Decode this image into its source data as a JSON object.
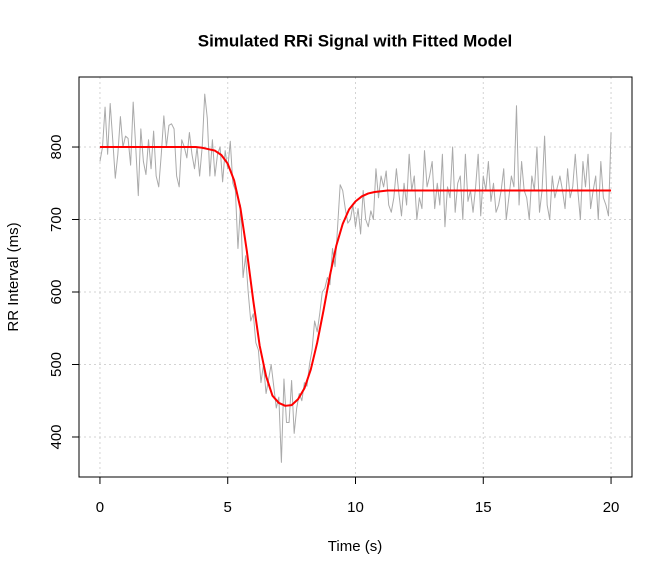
{
  "chart_data": {
    "type": "line",
    "title": "Simulated RRi Signal with Fitted Model",
    "x_label": "Time (s)",
    "y_label": "RR Interval (ms)",
    "xlim": [
      -0.82,
      20.82
    ],
    "ylim": [
      344.8,
      896.6
    ],
    "xticks": [
      0,
      5,
      10,
      15,
      20
    ],
    "yticks": [
      400,
      500,
      600,
      700,
      800
    ],
    "grid": true,
    "series": [
      {
        "color": "#aaaaaa",
        "width": 1,
        "x": [
          0,
          0.1,
          0.2,
          0.3,
          0.4,
          0.5,
          0.6,
          0.7,
          0.8,
          0.9,
          1,
          1.1,
          1.2,
          1.3,
          1.4,
          1.5,
          1.6,
          1.7,
          1.8,
          1.9,
          2,
          2.1,
          2.2,
          2.3,
          2.4,
          2.5,
          2.6,
          2.7,
          2.8,
          2.9,
          3,
          3.1,
          3.2,
          3.3,
          3.4,
          3.5,
          3.6,
          3.7,
          3.8,
          3.9,
          4,
          4.1,
          4.2,
          4.3,
          4.4,
          4.5,
          4.6,
          4.7,
          4.8,
          4.9,
          5,
          5.1,
          5.2,
          5.3,
          5.4,
          5.5,
          5.6,
          5.7,
          5.8,
          5.9,
          6,
          6.1,
          6.2,
          6.3,
          6.4,
          6.5,
          6.6,
          6.7,
          6.8,
          6.9,
          7,
          7.1,
          7.2,
          7.3,
          7.4,
          7.5,
          7.6,
          7.7,
          7.8,
          7.9,
          8,
          8.1,
          8.2,
          8.3,
          8.4,
          8.5,
          8.6,
          8.7,
          8.8,
          8.9,
          9,
          9.1,
          9.2,
          9.3,
          9.4,
          9.5,
          9.6,
          9.7,
          9.8,
          9.9,
          10,
          10.1,
          10.2,
          10.3,
          10.4,
          10.5,
          10.6,
          10.7,
          10.8,
          10.9,
          11,
          11.1,
          11.2,
          11.3,
          11.4,
          11.5,
          11.6,
          11.7,
          11.8,
          11.9,
          12,
          12.1,
          12.2,
          12.3,
          12.4,
          12.5,
          12.6,
          12.7,
          12.8,
          12.9,
          13,
          13.1,
          13.2,
          13.3,
          13.4,
          13.5,
          13.6,
          13.7,
          13.8,
          13.9,
          14,
          14.1,
          14.2,
          14.3,
          14.4,
          14.5,
          14.6,
          14.7,
          14.8,
          14.9,
          15,
          15.1,
          15.2,
          15.3,
          15.4,
          15.5,
          15.6,
          15.7,
          15.8,
          15.9,
          16,
          16.1,
          16.2,
          16.3,
          16.4,
          16.5,
          16.6,
          16.7,
          16.8,
          16.9,
          17,
          17.1,
          17.2,
          17.3,
          17.4,
          17.5,
          17.6,
          17.7,
          17.8,
          17.9,
          18,
          18.1,
          18.2,
          18.3,
          18.4,
          18.5,
          18.6,
          18.7,
          18.8,
          18.9,
          19,
          19.1,
          19.2,
          19.3,
          19.4,
          19.5,
          19.6,
          19.7,
          19.8,
          19.9,
          20
        ],
        "values": [
          780,
          800,
          855,
          790,
          860,
          810,
          757,
          790,
          842,
          800,
          815,
          812,
          775,
          862,
          800,
          733,
          825,
          780,
          762,
          810,
          770,
          822,
          760,
          745,
          790,
          843,
          800,
          830,
          832,
          825,
          760,
          745,
          810,
          800,
          785,
          820,
          790,
          770,
          800,
          760,
          800,
          873,
          840,
          760,
          810,
          760,
          790,
          800,
          752,
          795,
          770,
          808,
          750,
          740,
          660,
          720,
          620,
          650,
          600,
          560,
          570,
          530,
          520,
          475,
          500,
          460,
          480,
          500,
          470,
          440,
          455,
          365,
          480,
          420,
          420,
          478,
          405,
          440,
          460,
          450,
          475,
          470,
          500,
          520,
          560,
          545,
          570,
          600,
          605,
          620,
          610,
          660,
          635,
          690,
          748,
          740,
          715,
          695,
          700,
          720,
          690,
          715,
          680,
          740,
          700,
          690,
          712,
          700,
          770,
          730,
          760,
          745,
          767,
          720,
          710,
          730,
          770,
          735,
          705,
          750,
          720,
          790,
          740,
          760,
          700,
          730,
          715,
          795,
          745,
          760,
          780,
          715,
          750,
          720,
          790,
          690,
          745,
          730,
          800,
          710,
          750,
          760,
          700,
          790,
          725,
          740,
          710,
          745,
          790,
          705,
          760,
          740,
          780,
          725,
          750,
          710,
          720,
          740,
          770,
          700,
          730,
          760,
          745,
          857,
          720,
          780,
          740,
          730,
          700,
          760,
          740,
          800,
          710,
          740,
          815,
          720,
          700,
          760,
          730,
          745,
          760,
          740,
          715,
          770,
          730,
          745,
          790,
          740,
          700,
          780,
          745,
          790,
          715,
          740,
          760,
          700,
          780,
          730,
          720,
          705,
          820
        ]
      },
      {
        "color": "#ff0000",
        "width": 2,
        "x": [
          0,
          0.25,
          0.5,
          0.75,
          1,
          1.25,
          1.5,
          1.75,
          2,
          2.25,
          2.5,
          2.75,
          3,
          3.25,
          3.5,
          3.75,
          4,
          4.25,
          4.5,
          4.75,
          5,
          5.25,
          5.5,
          5.75,
          6,
          6.25,
          6.5,
          6.75,
          7,
          7.25,
          7.5,
          7.75,
          8,
          8.25,
          8.5,
          8.75,
          9,
          9.25,
          9.5,
          9.75,
          10,
          10.25,
          10.5,
          10.75,
          11,
          11.25,
          11.5,
          11.75,
          12,
          12.25,
          12.5,
          12.75,
          13,
          13.25,
          13.5,
          13.75,
          14,
          14.25,
          14.5,
          14.75,
          15,
          15.25,
          15.5,
          15.75,
          16,
          16.25,
          16.5,
          16.75,
          17,
          17.25,
          17.5,
          17.75,
          18,
          18.25,
          18.5,
          18.75,
          19,
          19.25,
          19.5,
          19.75,
          20
        ],
        "values": [
          800,
          800,
          800,
          800,
          800,
          800,
          800,
          800,
          800,
          800,
          800,
          800,
          800,
          800,
          800,
          800,
          799,
          797,
          795,
          789,
          777,
          754,
          715,
          656,
          588,
          526,
          484,
          457,
          447,
          443,
          444,
          452,
          467,
          493,
          530,
          575,
          623,
          664,
          694,
          714,
          725,
          732,
          736,
          738,
          739,
          740,
          740,
          740,
          740,
          740,
          740,
          740,
          740,
          740,
          740,
          740,
          740,
          740,
          740,
          740,
          740,
          740,
          740,
          740,
          740,
          740,
          740,
          740,
          740,
          740,
          740,
          740,
          740,
          740,
          740,
          740,
          740,
          740,
          740,
          740,
          740
        ]
      }
    ]
  }
}
